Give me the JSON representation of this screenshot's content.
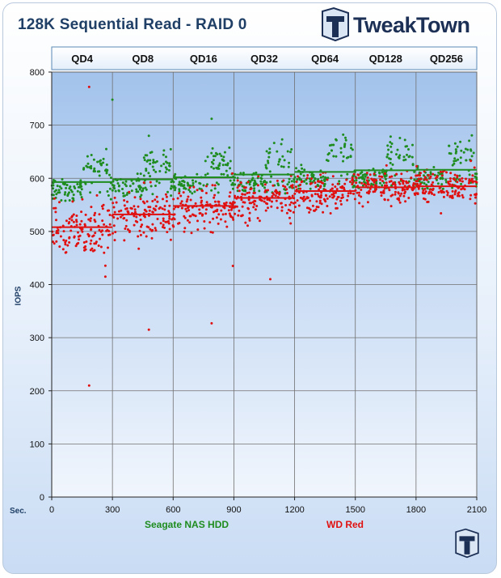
{
  "title": "128K Sequential  Read - RAID 0",
  "logo": {
    "text": "TweakTown"
  },
  "chart_data": {
    "type": "scatter",
    "title": "128K Sequential  Read - RAID 0",
    "xlabel": "Sec.",
    "ylabel": "IOPS",
    "xlim": [
      0,
      2100
    ],
    "ylim": [
      0,
      800
    ],
    "x_ticks": [
      0,
      300,
      600,
      900,
      1200,
      1500,
      1800,
      2100
    ],
    "y_ticks": [
      0,
      100,
      200,
      300,
      400,
      500,
      600,
      700,
      800
    ],
    "grid": true,
    "legend_position": "bottom",
    "segment_labels": [
      "QD4",
      "QD8",
      "QD16",
      "QD32",
      "QD64",
      "QD128",
      "QD256"
    ],
    "segment_boundaries": [
      0,
      300,
      600,
      900,
      1200,
      1500,
      1800,
      2100
    ],
    "series": [
      {
        "name": "Seagate NAS HDD",
        "color": "#1e8c1e",
        "segment_averages": [
          578,
          585,
          588,
          592,
          596,
          598,
          598
        ],
        "active_phase_averages": [
          620,
          625,
          630,
          640,
          648,
          650,
          650
        ],
        "average_lines": [
          {
            "x_start": 0,
            "x_end": 300,
            "y": 593
          },
          {
            "x_start": 300,
            "x_end": 600,
            "y": 598
          },
          {
            "x_start": 600,
            "x_end": 900,
            "y": 602
          },
          {
            "x_start": 900,
            "x_end": 1200,
            "y": 607
          },
          {
            "x_start": 1200,
            "x_end": 1500,
            "y": 612
          },
          {
            "x_start": 1500,
            "x_end": 1800,
            "y": 615
          },
          {
            "x_start": 1800,
            "x_end": 2100,
            "y": 616
          }
        ],
        "outliers": [
          {
            "x": 300,
            "y": 748
          },
          {
            "x": 480,
            "y": 680
          },
          {
            "x": 790,
            "y": 712
          }
        ]
      },
      {
        "name": "WD Red",
        "color": "#e01010",
        "segment_averages": [
          505,
          530,
          545,
          562,
          575,
          582,
          585
        ],
        "average_lines": [
          {
            "x_start": 0,
            "x_end": 300,
            "y": 508
          },
          {
            "x_start": 300,
            "x_end": 600,
            "y": 532
          },
          {
            "x_start": 600,
            "x_end": 900,
            "y": 548
          },
          {
            "x_start": 900,
            "x_end": 1200,
            "y": 563
          },
          {
            "x_start": 1200,
            "x_end": 1500,
            "y": 576
          },
          {
            "x_start": 1500,
            "x_end": 1800,
            "y": 583
          },
          {
            "x_start": 1800,
            "x_end": 2100,
            "y": 585
          }
        ],
        "outliers": [
          {
            "x": 185,
            "y": 772
          },
          {
            "x": 185,
            "y": 210
          },
          {
            "x": 265,
            "y": 415
          },
          {
            "x": 480,
            "y": 315
          },
          {
            "x": 790,
            "y": 327
          },
          {
            "x": 895,
            "y": 435
          },
          {
            "x": 1080,
            "y": 410
          }
        ]
      }
    ]
  },
  "colors": {
    "title": "#1f3f66",
    "plot_top": "#a9c7ee",
    "plot_bottom": "#eef4fc",
    "grid": "#6b6b6b",
    "seagate": "#1e8c1e",
    "wd": "#e01010"
  }
}
